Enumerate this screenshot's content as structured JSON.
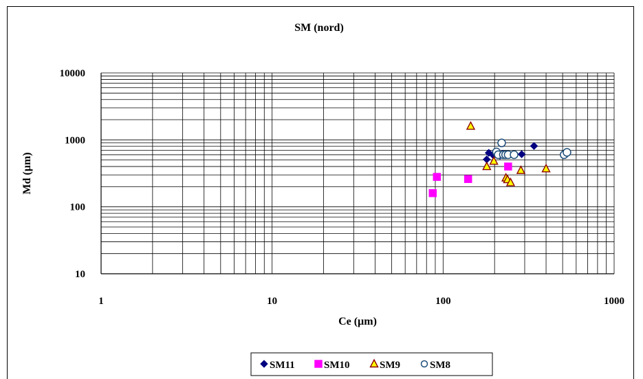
{
  "chart_data": {
    "type": "scatter",
    "title": "SM (nord)",
    "xlabel": "Ce (µm)",
    "ylabel": "Md (µm)",
    "xscale": "log",
    "yscale": "log",
    "xlim": [
      1,
      1000
    ],
    "ylim": [
      10,
      10000
    ],
    "x_ticks": [
      "1",
      "10",
      "100",
      "1000"
    ],
    "y_ticks": [
      "10",
      "100",
      "1000",
      "10000"
    ],
    "grid": true,
    "legend": "bottom",
    "series": [
      {
        "name": "SM11",
        "marker": "diamond",
        "color": "#000080",
        "points": [
          [
            180,
            510
          ],
          [
            185,
            640
          ],
          [
            195,
            600
          ],
          [
            215,
            580
          ],
          [
            222,
            620
          ],
          [
            230,
            590
          ],
          [
            288,
            610
          ],
          [
            340,
            810
          ]
        ]
      },
      {
        "name": "SM10",
        "marker": "square",
        "color": "#FF00FF",
        "points": [
          [
            87,
            160
          ],
          [
            92,
            280
          ],
          [
            140,
            260
          ],
          [
            240,
            400
          ]
        ]
      },
      {
        "name": "SM9",
        "marker": "triangle",
        "color": "#FFFF00",
        "edge": "#8B0000",
        "points": [
          [
            145,
            1600
          ],
          [
            180,
            400
          ],
          [
            198,
            480
          ],
          [
            233,
            270
          ],
          [
            238,
            255
          ],
          [
            248,
            230
          ],
          [
            285,
            350
          ],
          [
            400,
            370
          ]
        ]
      },
      {
        "name": "SM8",
        "marker": "circle",
        "color": "#FFFFFF",
        "edge": "#1F4E79",
        "points": [
          [
            205,
            660
          ],
          [
            210,
            600
          ],
          [
            220,
            900
          ],
          [
            225,
            600
          ],
          [
            232,
            600
          ],
          [
            240,
            600
          ],
          [
            260,
            600
          ],
          [
            510,
            600
          ],
          [
            530,
            650
          ]
        ]
      }
    ]
  }
}
